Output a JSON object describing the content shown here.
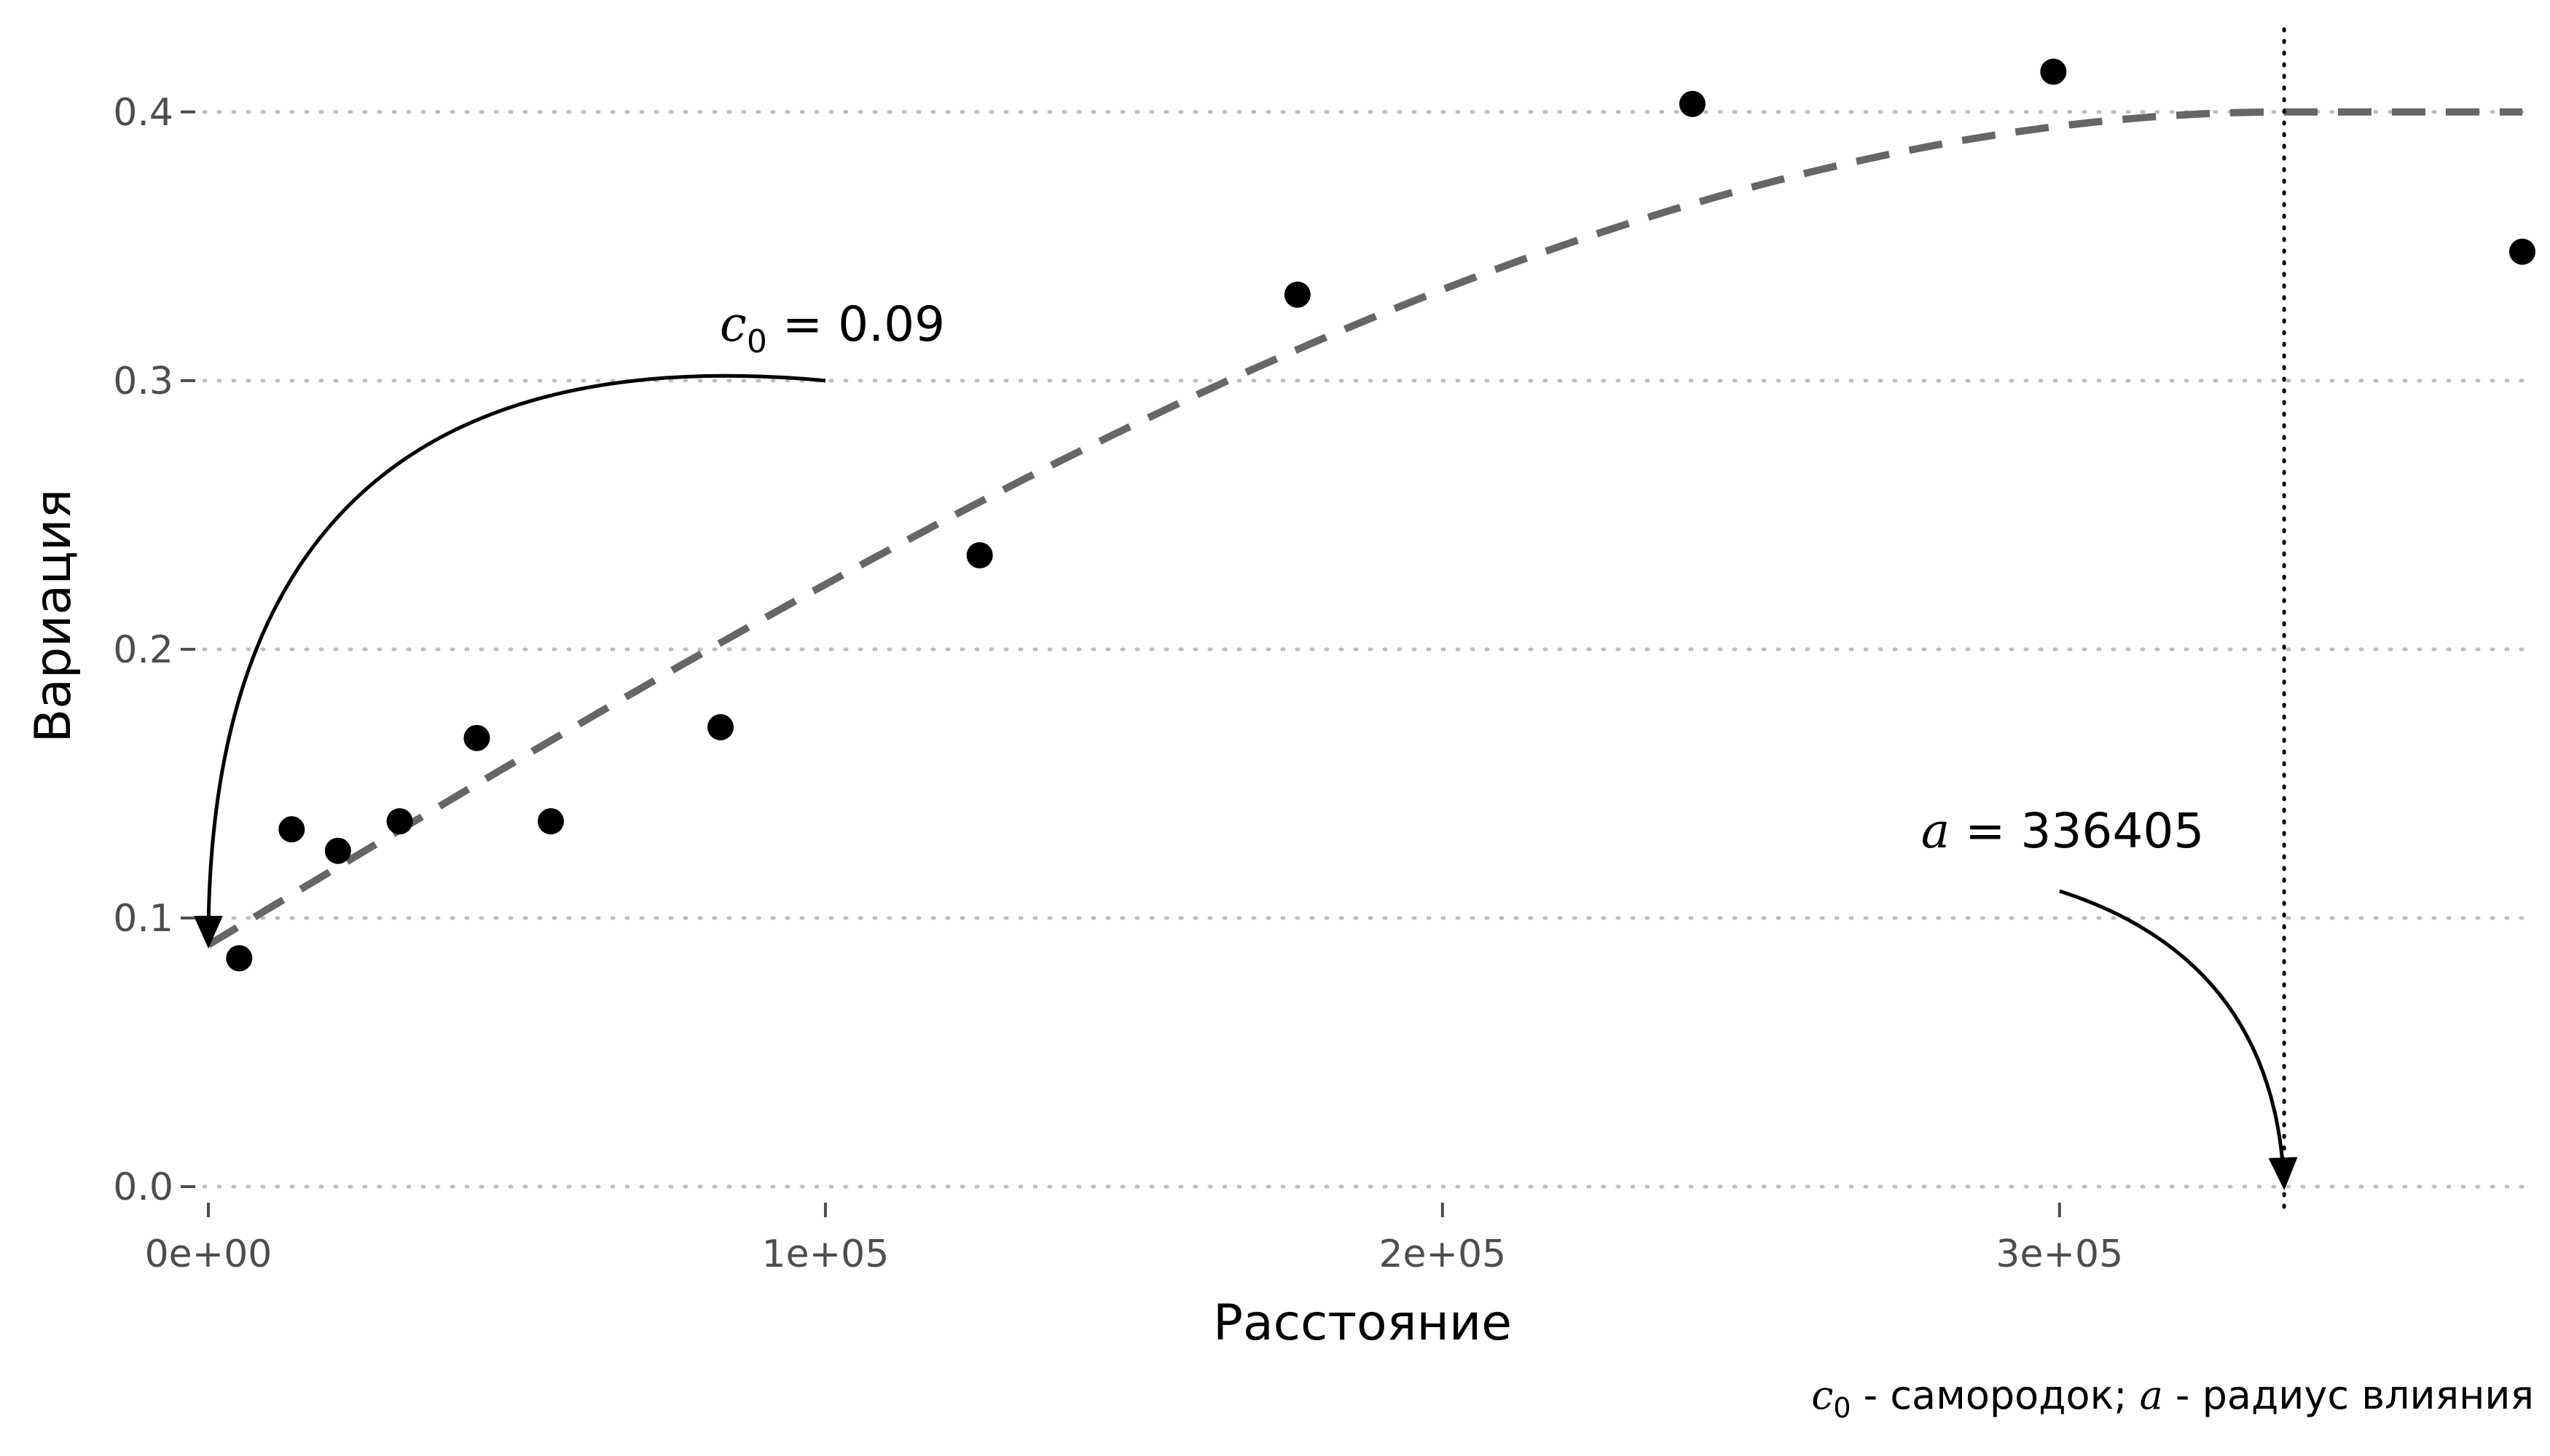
{
  "chart_data": {
    "type": "scatter",
    "title": "",
    "xlabel": "Расстояние",
    "ylabel": "Вариация",
    "xlim": [
      0,
      375000
    ],
    "ylim": [
      0,
      0.42
    ],
    "x_ticks": [
      0,
      100000,
      200000,
      300000
    ],
    "x_tick_labels": [
      "0e+00",
      "1e+05",
      "2e+05",
      "3e+05"
    ],
    "y_ticks": [
      0.0,
      0.1,
      0.2,
      0.3,
      0.4
    ],
    "y_tick_labels": [
      "0.0",
      "0.1",
      "0.2",
      "0.3",
      "0.4"
    ],
    "grid": "horizontal dotted",
    "series": [
      {
        "kind": "points",
        "color": "#000000",
        "points": [
          {
            "x": 5000,
            "y": 0.085
          },
          {
            "x": 13500,
            "y": 0.133
          },
          {
            "x": 21000,
            "y": 0.125
          },
          {
            "x": 31000,
            "y": 0.136
          },
          {
            "x": 43500,
            "y": 0.167
          },
          {
            "x": 55500,
            "y": 0.136
          },
          {
            "x": 83000,
            "y": 0.171
          },
          {
            "x": 125000,
            "y": 0.235
          },
          {
            "x": 176500,
            "y": 0.332
          },
          {
            "x": 240500,
            "y": 0.403
          },
          {
            "x": 299000,
            "y": 0.415
          },
          {
            "x": 375000,
            "y": 0.348
          }
        ]
      },
      {
        "kind": "fitted-model",
        "model": "spherical",
        "nugget": 0.09,
        "sill": 0.4,
        "range": 336405,
        "color": "#666666",
        "line": "dashed"
      }
    ],
    "vline": {
      "x": 336405,
      "style": "dotted",
      "color": "#000000"
    },
    "annotations": [
      {
        "symbol": "c",
        "subscript": "0",
        "text": " = 0.09",
        "anchor_x": 100000,
        "anchor_y": 0.3,
        "target_x": 0,
        "target_y": 0.09
      },
      {
        "symbol": "a",
        "subscript": "",
        "text": " = 336405",
        "anchor_x": 300000,
        "anchor_y": 0.11,
        "target_x": 336405,
        "target_y": 0
      }
    ],
    "caption": {
      "sym1": "c",
      "sub1": "0",
      "text1": " - самородок; ",
      "sym2": "a",
      "text2": " - радиус влияния"
    }
  }
}
